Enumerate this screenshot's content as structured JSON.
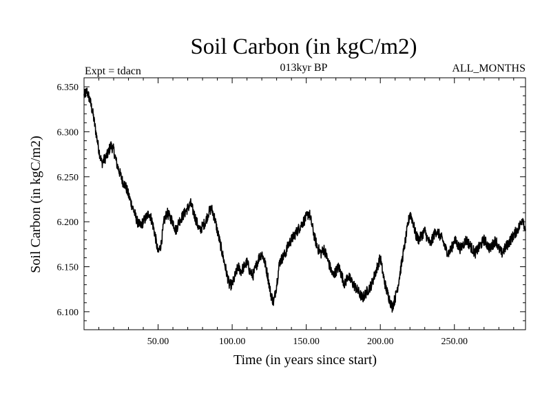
{
  "chart_data": {
    "type": "line",
    "title": "Soil Carbon (in kgC/m2)",
    "subtitle": "013kyr BP",
    "left_label": "Expt = tdacn",
    "right_label": "ALL_MONTHS",
    "xlabel": "Time (in years since start)",
    "ylabel": "Soil Carbon (in kgC/m2)",
    "xlim": [
      0,
      298
    ],
    "ylim": [
      6.08,
      6.36
    ],
    "x_ticks": [
      50,
      100,
      150,
      200,
      250
    ],
    "x_tick_labels": [
      "50.00",
      "100.00",
      "150.00",
      "200.00",
      "250.00"
    ],
    "y_ticks": [
      6.1,
      6.15,
      6.2,
      6.25,
      6.3,
      6.35
    ],
    "y_tick_labels": [
      "6.100",
      "6.150",
      "6.200",
      "6.250",
      "6.300",
      "6.350"
    ],
    "grid": false,
    "line_color": "#000000",
    "series": [
      {
        "name": "soil carbon",
        "x": [
          0,
          2,
          4,
          6,
          8,
          10,
          12,
          14,
          16,
          18,
          20,
          22,
          24,
          26,
          28,
          30,
          32,
          34,
          36,
          38,
          40,
          42,
          44,
          46,
          48,
          50,
          52,
          54,
          56,
          58,
          60,
          62,
          64,
          66,
          68,
          70,
          72,
          74,
          76,
          78,
          80,
          82,
          84,
          86,
          88,
          90,
          92,
          94,
          96,
          98,
          100,
          102,
          104,
          106,
          108,
          110,
          112,
          114,
          116,
          118,
          120,
          122,
          124,
          126,
          128,
          130,
          132,
          134,
          136,
          138,
          140,
          142,
          144,
          146,
          148,
          150,
          152,
          154,
          156,
          158,
          160,
          162,
          164,
          166,
          168,
          170,
          172,
          174,
          176,
          178,
          180,
          182,
          184,
          186,
          188,
          190,
          192,
          194,
          196,
          198,
          200,
          202,
          204,
          206,
          208,
          210,
          212,
          214,
          216,
          218,
          220,
          222,
          224,
          226,
          228,
          230,
          232,
          234,
          236,
          238,
          240,
          242,
          244,
          246,
          248,
          250,
          252,
          254,
          256,
          258,
          260,
          262,
          264,
          266,
          268,
          270,
          272,
          274,
          276,
          278,
          280,
          282,
          284,
          286,
          288,
          290,
          292,
          294,
          296,
          298
        ],
        "values": [
          6.34,
          6.345,
          6.335,
          6.32,
          6.3,
          6.28,
          6.265,
          6.27,
          6.275,
          6.285,
          6.28,
          6.265,
          6.255,
          6.245,
          6.24,
          6.23,
          6.22,
          6.21,
          6.2,
          6.195,
          6.2,
          6.205,
          6.21,
          6.2,
          6.185,
          6.165,
          6.175,
          6.2,
          6.21,
          6.205,
          6.2,
          6.19,
          6.2,
          6.205,
          6.21,
          6.215,
          6.22,
          6.21,
          6.2,
          6.19,
          6.195,
          6.2,
          6.21,
          6.215,
          6.205,
          6.19,
          6.175,
          6.16,
          6.145,
          6.13,
          6.13,
          6.14,
          6.15,
          6.145,
          6.15,
          6.155,
          6.145,
          6.14,
          6.15,
          6.16,
          6.165,
          6.155,
          6.14,
          6.12,
          6.11,
          6.13,
          6.155,
          6.16,
          6.165,
          6.175,
          6.18,
          6.185,
          6.19,
          6.195,
          6.2,
          6.205,
          6.21,
          6.195,
          6.18,
          6.17,
          6.165,
          6.17,
          6.16,
          6.15,
          6.14,
          6.145,
          6.15,
          6.14,
          6.13,
          6.14,
          6.135,
          6.13,
          6.125,
          6.12,
          6.115,
          6.12,
          6.125,
          6.13,
          6.14,
          6.15,
          6.16,
          6.14,
          6.125,
          6.115,
          6.105,
          6.115,
          6.13,
          6.15,
          6.17,
          6.19,
          6.21,
          6.2,
          6.185,
          6.18,
          6.185,
          6.19,
          6.18,
          6.175,
          6.185,
          6.19,
          6.185,
          6.18,
          6.17,
          6.165,
          6.17,
          6.18,
          6.175,
          6.17,
          6.175,
          6.18,
          6.175,
          6.17,
          6.165,
          6.17,
          6.175,
          6.18,
          6.175,
          6.17,
          6.175,
          6.18,
          6.17,
          6.165,
          6.17,
          6.175,
          6.18,
          6.185,
          6.19,
          6.195,
          6.205,
          6.19
        ]
      }
    ]
  }
}
